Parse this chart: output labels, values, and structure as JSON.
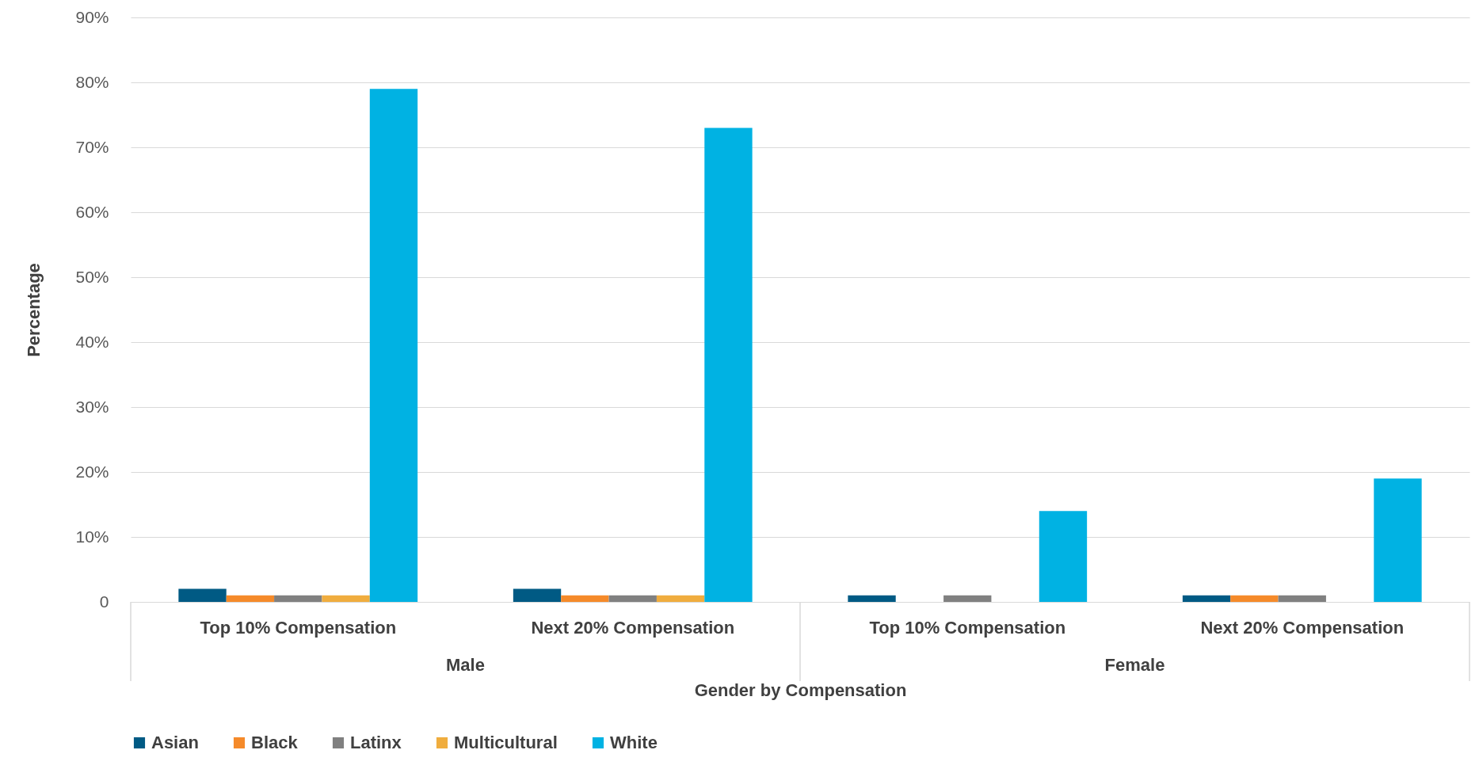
{
  "chart_data": {
    "type": "bar",
    "xlabel": "Gender by Compensation",
    "ylabel": "Percentage",
    "categories": [
      "Top 10% Compensation",
      "Next 20% Compensation",
      "Top 10% Compensation",
      "Next 20% Compensation"
    ],
    "annotations": [
      "Male",
      "Female"
    ],
    "series": [
      {
        "name": "Asian",
        "color": "#005a84",
        "values": [
          2,
          2,
          1,
          1
        ]
      },
      {
        "name": "Black",
        "color": "#f58a2a",
        "values": [
          1,
          1,
          0,
          1
        ]
      },
      {
        "name": "Latinx",
        "color": "#808080",
        "values": [
          1,
          1,
          1,
          1
        ]
      },
      {
        "name": "Multicultural",
        "color": "#f0ad3e",
        "values": [
          1,
          1,
          0,
          0
        ]
      },
      {
        "name": "White",
        "color": "#00b2e3",
        "values": [
          79,
          73,
          14,
          19
        ]
      }
    ],
    "ylim": [
      0,
      90
    ],
    "yticks": [
      0,
      {
        "value": 10,
        "label": "10%"
      },
      {
        "value": 20,
        "label": "20%"
      },
      {
        "value": 30,
        "label": "30%"
      },
      {
        "value": 40,
        "label": "40%"
      },
      {
        "value": 50,
        "label": "50%"
      },
      {
        "value": 60,
        "label": "60%"
      },
      {
        "value": 70,
        "label": "70%"
      },
      {
        "value": 80,
        "label": "80%"
      },
      {
        "value": 90,
        "label": "90%"
      }
    ],
    "grid": "y",
    "legend": "bottom"
  }
}
